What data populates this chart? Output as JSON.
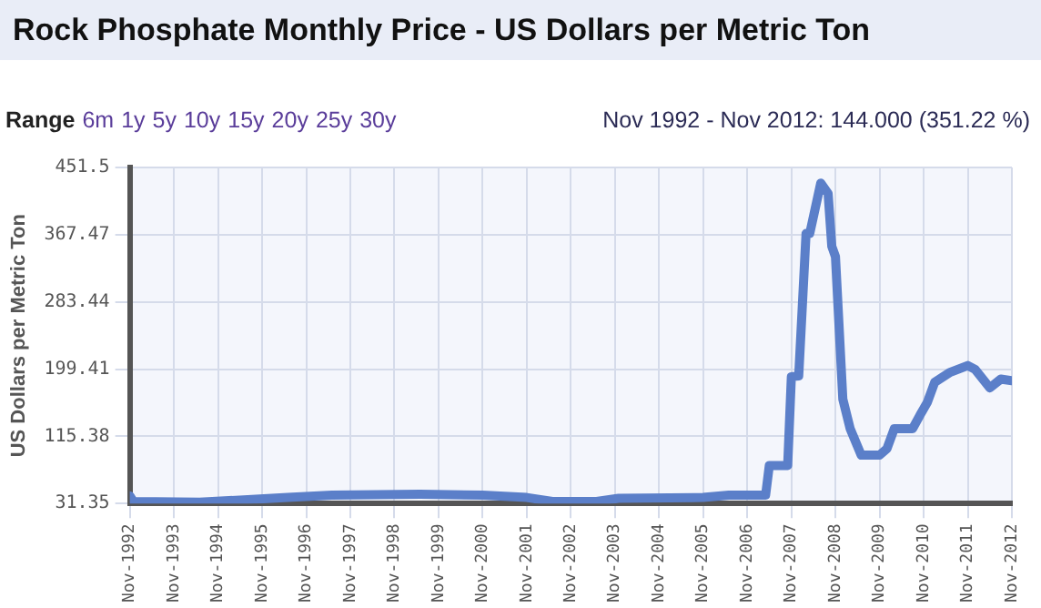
{
  "chart_data": {
    "type": "line",
    "title": "Rock Phosphate Monthly Price - US Dollars per Metric Ton",
    "ylabel": "US Dollars per Metric Ton",
    "annotations": [
      "Range",
      "6m",
      "1y",
      "5y",
      "10y",
      "15y",
      "20y",
      "25y",
      "30y",
      "Nov 1992 - Nov 2012: 144.000 (351.22 %)"
    ],
    "x": [
      "1992-11",
      "1992-12",
      "1994-06",
      "1995-06",
      "1996-06",
      "1997-06",
      "1999-06",
      "2000-11",
      "2001-11",
      "2002-06",
      "2003-06",
      "2003-12",
      "2005-11",
      "2006-06",
      "2007-04",
      "2007-05",
      "2007-10",
      "2007-11",
      "2008-01",
      "2008-03",
      "2008-04",
      "2008-07",
      "2008-09",
      "2008-10",
      "2008-11",
      "2009-01",
      "2009-03",
      "2009-06",
      "2009-11",
      "2010-01",
      "2010-03",
      "2010-08",
      "2010-10",
      "2010-12",
      "2011-02",
      "2011-06",
      "2011-11",
      "2012-01",
      "2012-05",
      "2012-08",
      "2012-11"
    ],
    "series": [
      {
        "color": "#5b7fc9",
        "values": [
          41,
          34,
          33,
          36,
          39,
          42,
          43,
          42,
          39,
          34,
          34,
          38,
          39,
          42,
          42,
          79,
          79,
          190,
          191,
          369,
          369,
          432,
          419,
          353,
          340,
          162,
          125,
          92,
          92,
          100,
          125,
          125,
          142,
          158,
          183,
          195,
          204,
          199,
          176,
          187,
          185
        ]
      }
    ],
    "xlim": [
      "1992-11",
      "2012-11"
    ],
    "xticks": [
      {
        "value": "1992-11",
        "label": "Nov-1992"
      },
      {
        "value": "1993-11",
        "label": "Nov-1993"
      },
      {
        "value": "1994-11",
        "label": "Nov-1994"
      },
      {
        "value": "1995-11",
        "label": "Nov-1995"
      },
      {
        "value": "1996-11",
        "label": "Nov-1996"
      },
      {
        "value": "1997-11",
        "label": "Nov-1997"
      },
      {
        "value": "1998-11",
        "label": "Nov-1998"
      },
      {
        "value": "1999-11",
        "label": "Nov-1999"
      },
      {
        "value": "2000-11",
        "label": "Nov-2000"
      },
      {
        "value": "2001-11",
        "label": "Nov-2001"
      },
      {
        "value": "2002-11",
        "label": "Nov-2002"
      },
      {
        "value": "2003-11",
        "label": "Nov-2003"
      },
      {
        "value": "2004-11",
        "label": "Nov-2004"
      },
      {
        "value": "2005-11",
        "label": "Nov-2005"
      },
      {
        "value": "2006-11",
        "label": "Nov-2006"
      },
      {
        "value": "2007-11",
        "label": "Nov-2007"
      },
      {
        "value": "2008-11",
        "label": "Nov-2008"
      },
      {
        "value": "2009-11",
        "label": "Nov-2009"
      },
      {
        "value": "2010-11",
        "label": "Nov-2010"
      },
      {
        "value": "2011-11",
        "label": "Nov-2011"
      },
      {
        "value": "2012-11",
        "label": "Nov-2012"
      }
    ],
    "ylim": [
      31.35,
      451.5
    ],
    "yticks": [
      31.35,
      115.38,
      199.41,
      283.44,
      367.47,
      451.5
    ],
    "grid": true,
    "legend": false,
    "marker": "none",
    "line_style": "solid"
  }
}
